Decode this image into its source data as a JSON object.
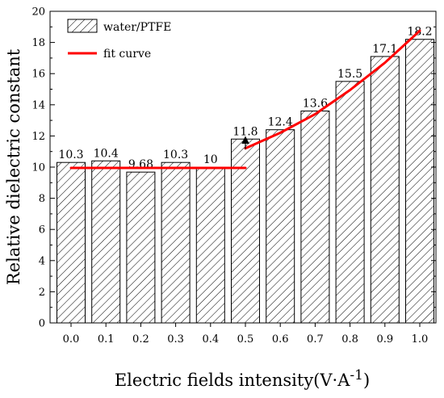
{
  "chart_data": {
    "type": "bar",
    "categories": [
      "0.0",
      "0.1",
      "0.2",
      "0.3",
      "0.4",
      "0.5",
      "0.6",
      "0.7",
      "0.8",
      "0.9",
      "1.0"
    ],
    "series": [
      {
        "name": "water/PTFE",
        "values": [
          10.3,
          10.4,
          9.68,
          10.3,
          10,
          11.8,
          12.4,
          13.6,
          15.5,
          17.1,
          18.2
        ],
        "data_labels": [
          "10.3",
          "10.4",
          "9.68",
          "10.3",
          "10",
          "11.8",
          "12.4",
          "13.6",
          "15.5",
          "17.1",
          "18.2"
        ],
        "fill": "hatched",
        "color": "#000000"
      },
      {
        "name": "fit curve",
        "type": "line",
        "color": "#ff0000",
        "segments": [
          {
            "x": [
              0.0,
              0.5
            ],
            "y": [
              9.95,
              9.95
            ]
          },
          {
            "x": [
              0.5,
              0.6,
              0.7,
              0.8,
              0.9,
              1.0
            ],
            "y": [
              11.2,
              12.2,
              13.4,
              14.95,
              16.7,
              18.75
            ]
          }
        ]
      }
    ],
    "xlabel_main": "Electric fields intensity(V·A",
    "xlabel_sup": "-1",
    "xlabel_close": ")",
    "ylabel": "Relative dielectric constant",
    "ylim": [
      0,
      20
    ],
    "yticks": [
      "0",
      "2",
      "4",
      "6",
      "8",
      "10",
      "12",
      "14",
      "16",
      "18",
      "20"
    ],
    "legend_position": "top-left",
    "grid": false,
    "annotation": "arrow at x = 0.5 from y = 11.2 up to 11.8"
  }
}
